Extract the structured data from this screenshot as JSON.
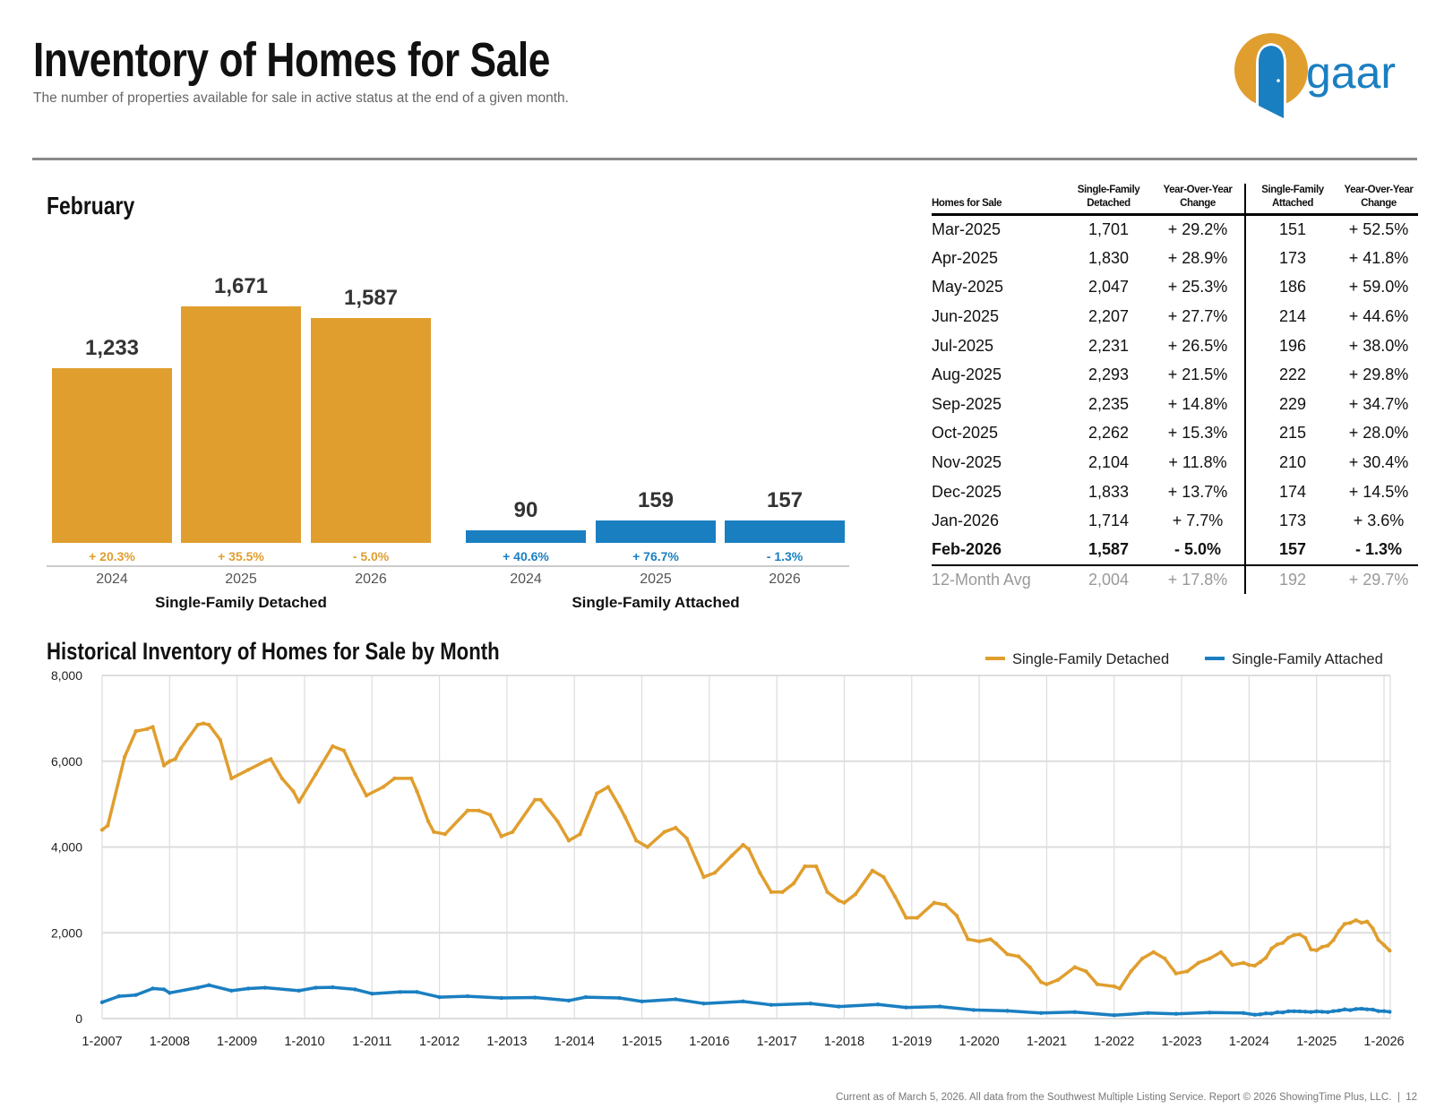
{
  "header": {
    "title": "Inventory of Homes for Sale",
    "subtitle": "The number of properties available for sale in active status at the end of a given month.",
    "logo_text": "gaar"
  },
  "colors": {
    "detached": "#E09E2E",
    "attached": "#1A7FC1",
    "rule": "#8a8a8a"
  },
  "month_section": {
    "title": "February",
    "groups": [
      {
        "label": "Single-Family Detached",
        "color": "#E09E2E",
        "bars": [
          {
            "year": "2024",
            "value": 1233,
            "value_label": "1,233",
            "change": "+ 20.3%"
          },
          {
            "year": "2025",
            "value": 1671,
            "value_label": "1,671",
            "change": "+ 35.5%"
          },
          {
            "year": "2026",
            "value": 1587,
            "value_label": "1,587",
            "change": "- 5.0%"
          }
        ]
      },
      {
        "label": "Single-Family Attached",
        "color": "#1A7FC1",
        "bars": [
          {
            "year": "2024",
            "value": 90,
            "value_label": "90",
            "change": "+ 40.6%"
          },
          {
            "year": "2025",
            "value": 159,
            "value_label": "159",
            "change": "+ 76.7%"
          },
          {
            "year": "2026",
            "value": 157,
            "value_label": "157",
            "change": "- 1.3%"
          }
        ]
      }
    ]
  },
  "table": {
    "headers": [
      "Homes for Sale",
      "Single-Family Detached",
      "Year-Over-Year Change",
      "Single-Family Attached",
      "Year-Over-Year Change"
    ],
    "rows": [
      [
        "Mar-2025",
        "1,701",
        "+ 29.2%",
        "151",
        "+ 52.5%"
      ],
      [
        "Apr-2025",
        "1,830",
        "+ 28.9%",
        "173",
        "+ 41.8%"
      ],
      [
        "May-2025",
        "2,047",
        "+ 25.3%",
        "186",
        "+ 59.0%"
      ],
      [
        "Jun-2025",
        "2,207",
        "+ 27.7%",
        "214",
        "+ 44.6%"
      ],
      [
        "Jul-2025",
        "2,231",
        "+ 26.5%",
        "196",
        "+ 38.0%"
      ],
      [
        "Aug-2025",
        "2,293",
        "+ 21.5%",
        "222",
        "+ 29.8%"
      ],
      [
        "Sep-2025",
        "2,235",
        "+ 14.8%",
        "229",
        "+ 34.7%"
      ],
      [
        "Oct-2025",
        "2,262",
        "+ 15.3%",
        "215",
        "+ 28.0%"
      ],
      [
        "Nov-2025",
        "2,104",
        "+ 11.8%",
        "210",
        "+ 30.4%"
      ],
      [
        "Dec-2025",
        "1,833",
        "+ 13.7%",
        "174",
        "+ 14.5%"
      ],
      [
        "Jan-2026",
        "1,714",
        "+ 7.7%",
        "173",
        "+ 3.6%"
      ],
      [
        "Feb-2026",
        "1,587",
        "- 5.0%",
        "157",
        "- 1.3%"
      ]
    ],
    "average": [
      "12-Month Avg",
      "2,004",
      "+ 17.8%",
      "192",
      "+ 29.7%"
    ]
  },
  "chart_data": [
    {
      "type": "bar",
      "title": "February",
      "categories": [
        "2024",
        "2025",
        "2026"
      ],
      "series": [
        {
          "name": "Single-Family Detached",
          "values": [
            1233,
            1671,
            1587
          ]
        },
        {
          "name": "Single-Family Attached",
          "values": [
            90,
            159,
            157
          ]
        }
      ]
    },
    {
      "type": "line",
      "title": "Historical Inventory of Homes for Sale by Month",
      "ylim": [
        0,
        8000
      ],
      "y_ticks": [
        "0",
        "2,000",
        "4,000",
        "6,000",
        "8,000"
      ],
      "x_ticks": [
        "1-2007",
        "1-2008",
        "1-2009",
        "1-2010",
        "1-2011",
        "1-2012",
        "1-2013",
        "1-2014",
        "1-2015",
        "1-2016",
        "1-2017",
        "1-2018",
        "1-2019",
        "1-2020",
        "1-2021",
        "1-2022",
        "1-2023",
        "1-2024",
        "1-2025",
        "1-2026"
      ],
      "grid": true,
      "legend": "top-right",
      "series": [
        {
          "name": "Single-Family Detached",
          "color": "#E09E2E",
          "points": [
            [
              "2007-01",
              4400
            ],
            [
              "2007-02",
              4500
            ],
            [
              "2007-05",
              6100
            ],
            [
              "2007-07",
              6700
            ],
            [
              "2007-09",
              6750
            ],
            [
              "2007-10",
              6800
            ],
            [
              "2007-12",
              5900
            ],
            [
              "2008-01",
              6000
            ],
            [
              "2008-02",
              6050
            ],
            [
              "2008-03",
              6300
            ],
            [
              "2008-06",
              6850
            ],
            [
              "2008-07",
              6880
            ],
            [
              "2008-08",
              6850
            ],
            [
              "2008-10",
              6500
            ],
            [
              "2008-12",
              5600
            ],
            [
              "2009-03",
              5800
            ],
            [
              "2009-06",
              6000
            ],
            [
              "2009-07",
              6050
            ],
            [
              "2009-09",
              5600
            ],
            [
              "2009-11",
              5300
            ],
            [
              "2009-12",
              5050
            ],
            [
              "2010-03",
              5700
            ],
            [
              "2010-06",
              6350
            ],
            [
              "2010-08",
              6250
            ],
            [
              "2010-10",
              5700
            ],
            [
              "2010-12",
              5200
            ],
            [
              "2011-03",
              5400
            ],
            [
              "2011-05",
              5600
            ],
            [
              "2011-08",
              5600
            ],
            [
              "2011-09",
              5300
            ],
            [
              "2011-11",
              4600
            ],
            [
              "2011-12",
              4350
            ],
            [
              "2012-02",
              4300
            ],
            [
              "2012-06",
              4850
            ],
            [
              "2012-08",
              4850
            ],
            [
              "2012-10",
              4750
            ],
            [
              "2012-12",
              4250
            ],
            [
              "2013-02",
              4350
            ],
            [
              "2013-06",
              5100
            ],
            [
              "2013-07",
              5100
            ],
            [
              "2013-10",
              4600
            ],
            [
              "2013-12",
              4150
            ],
            [
              "2014-02",
              4300
            ],
            [
              "2014-05",
              5250
            ],
            [
              "2014-07",
              5400
            ],
            [
              "2014-09",
              4950
            ],
            [
              "2014-10",
              4700
            ],
            [
              "2014-12",
              4150
            ],
            [
              "2015-02",
              4000
            ],
            [
              "2015-05",
              4350
            ],
            [
              "2015-07",
              4450
            ],
            [
              "2015-09",
              4200
            ],
            [
              "2015-12",
              3300
            ],
            [
              "2016-02",
              3400
            ],
            [
              "2016-05",
              3800
            ],
            [
              "2016-07",
              4050
            ],
            [
              "2016-08",
              3950
            ],
            [
              "2016-10",
              3400
            ],
            [
              "2016-12",
              2950
            ],
            [
              "2017-02",
              2950
            ],
            [
              "2017-04",
              3150
            ],
            [
              "2017-06",
              3550
            ],
            [
              "2017-08",
              3550
            ],
            [
              "2017-10",
              2950
            ],
            [
              "2017-12",
              2750
            ],
            [
              "2018-01",
              2700
            ],
            [
              "2018-03",
              2900
            ],
            [
              "2018-06",
              3450
            ],
            [
              "2018-08",
              3300
            ],
            [
              "2018-10",
              2850
            ],
            [
              "2018-12",
              2350
            ],
            [
              "2019-02",
              2350
            ],
            [
              "2019-05",
              2700
            ],
            [
              "2019-07",
              2650
            ],
            [
              "2019-09",
              2400
            ],
            [
              "2019-11",
              1850
            ],
            [
              "2020-01",
              1800
            ],
            [
              "2020-03",
              1850
            ],
            [
              "2020-04",
              1750
            ],
            [
              "2020-06",
              1500
            ],
            [
              "2020-08",
              1450
            ],
            [
              "2020-10",
              1200
            ],
            [
              "2020-12",
              850
            ],
            [
              "2021-01",
              800
            ],
            [
              "2021-03",
              900
            ],
            [
              "2021-06",
              1200
            ],
            [
              "2021-08",
              1100
            ],
            [
              "2021-10",
              800
            ],
            [
              "2022-01",
              750
            ],
            [
              "2022-02",
              700
            ],
            [
              "2022-04",
              1100
            ],
            [
              "2022-06",
              1400
            ],
            [
              "2022-08",
              1550
            ],
            [
              "2022-10",
              1400
            ],
            [
              "2022-12",
              1050
            ],
            [
              "2023-02",
              1100
            ],
            [
              "2023-04",
              1300
            ],
            [
              "2023-06",
              1400
            ],
            [
              "2023-08",
              1550
            ],
            [
              "2023-10",
              1250
            ],
            [
              "2023-12",
              1300
            ],
            [
              "2024-01",
              1250
            ],
            [
              "2024-02",
              1233
            ],
            [
              "2024-03",
              1317
            ],
            [
              "2024-04",
              1420
            ],
            [
              "2024-05",
              1634
            ],
            [
              "2024-06",
              1728
            ],
            [
              "2024-07",
              1764
            ],
            [
              "2024-08",
              1887
            ],
            [
              "2024-09",
              1947
            ],
            [
              "2024-10",
              1962
            ],
            [
              "2024-11",
              1882
            ],
            [
              "2024-12",
              1612
            ],
            [
              "2025-01",
              1591
            ],
            [
              "2025-02",
              1671
            ],
            [
              "2025-03",
              1701
            ],
            [
              "2025-04",
              1830
            ],
            [
              "2025-05",
              2047
            ],
            [
              "2025-06",
              2207
            ],
            [
              "2025-07",
              2231
            ],
            [
              "2025-08",
              2293
            ],
            [
              "2025-09",
              2235
            ],
            [
              "2025-10",
              2262
            ],
            [
              "2025-11",
              2104
            ],
            [
              "2025-12",
              1833
            ],
            [
              "2026-01",
              1714
            ],
            [
              "2026-02",
              1587
            ]
          ]
        },
        {
          "name": "Single-Family Attached",
          "color": "#1A7FC1",
          "points": [
            [
              "2007-01",
              380
            ],
            [
              "2007-04",
              520
            ],
            [
              "2007-07",
              550
            ],
            [
              "2007-10",
              700
            ],
            [
              "2007-12",
              680
            ],
            [
              "2008-01",
              600
            ],
            [
              "2008-06",
              720
            ],
            [
              "2008-08",
              780
            ],
            [
              "2008-12",
              650
            ],
            [
              "2009-03",
              700
            ],
            [
              "2009-06",
              720
            ],
            [
              "2009-12",
              650
            ],
            [
              "2010-03",
              720
            ],
            [
              "2010-06",
              730
            ],
            [
              "2010-10",
              680
            ],
            [
              "2011-01",
              580
            ],
            [
              "2011-06",
              620
            ],
            [
              "2011-09",
              620
            ],
            [
              "2012-01",
              500
            ],
            [
              "2012-06",
              520
            ],
            [
              "2012-12",
              480
            ],
            [
              "2013-06",
              490
            ],
            [
              "2013-12",
              420
            ],
            [
              "2014-03",
              500
            ],
            [
              "2014-09",
              480
            ],
            [
              "2015-01",
              400
            ],
            [
              "2015-07",
              450
            ],
            [
              "2015-12",
              350
            ],
            [
              "2016-07",
              400
            ],
            [
              "2016-12",
              320
            ],
            [
              "2017-07",
              350
            ],
            [
              "2017-12",
              280
            ],
            [
              "2018-07",
              330
            ],
            [
              "2018-12",
              260
            ],
            [
              "2019-06",
              280
            ],
            [
              "2019-12",
              200
            ],
            [
              "2020-06",
              180
            ],
            [
              "2020-12",
              130
            ],
            [
              "2021-06",
              150
            ],
            [
              "2022-01",
              80
            ],
            [
              "2022-07",
              130
            ],
            [
              "2022-12",
              110
            ],
            [
              "2023-06",
              140
            ],
            [
              "2023-12",
              130
            ],
            [
              "2024-02",
              90
            ],
            [
              "2024-03",
              99
            ],
            [
              "2024-04",
              122
            ],
            [
              "2024-05",
              117
            ],
            [
              "2024-06",
              148
            ],
            [
              "2024-07",
              142
            ],
            [
              "2024-08",
              171
            ],
            [
              "2024-09",
              170
            ],
            [
              "2024-10",
              168
            ],
            [
              "2024-11",
              161
            ],
            [
              "2024-12",
              152
            ],
            [
              "2025-01",
              167
            ],
            [
              "2025-02",
              159
            ],
            [
              "2025-03",
              151
            ],
            [
              "2025-04",
              173
            ],
            [
              "2025-05",
              186
            ],
            [
              "2025-06",
              214
            ],
            [
              "2025-07",
              196
            ],
            [
              "2025-08",
              222
            ],
            [
              "2025-09",
              229
            ],
            [
              "2025-10",
              215
            ],
            [
              "2025-11",
              210
            ],
            [
              "2025-12",
              174
            ],
            [
              "2026-01",
              173
            ],
            [
              "2026-02",
              157
            ]
          ]
        }
      ]
    }
  ],
  "footer": {
    "text": "Current as of March 5, 2026. All data from the Southwest Multiple Listing Service. Report © 2026 ShowingTime Plus, LLC.  |  12"
  }
}
